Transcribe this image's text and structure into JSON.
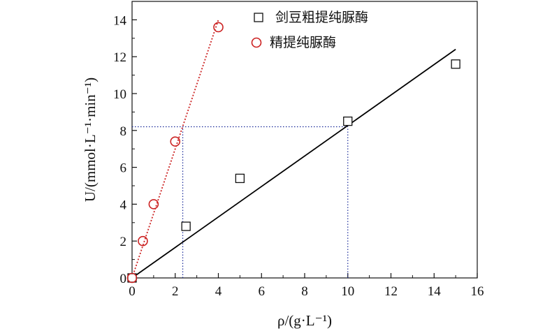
{
  "chart_data": {
    "type": "scatter",
    "xlabel": "ρ/(g·L⁻¹)",
    "ylabel": "U/(mmol·L⁻¹·min⁻¹)",
    "xlim": [
      0,
      16
    ],
    "ylim": [
      0,
      15
    ],
    "xticks": [
      0,
      2,
      4,
      6,
      8,
      10,
      12,
      14,
      16
    ],
    "yticks": [
      0,
      2,
      4,
      6,
      8,
      10,
      12,
      14
    ],
    "grid": false,
    "legend_position": "top-right",
    "series": [
      {
        "name": "剑豆粗提纯脲酶",
        "marker": "square",
        "color": "#111111",
        "x": [
          0,
          2.5,
          5,
          10,
          15
        ],
        "y": [
          0,
          2.8,
          5.4,
          8.5,
          11.6
        ],
        "fit_line": {
          "x": [
            0,
            15
          ],
          "y": [
            0,
            12.4
          ],
          "color": "#000000",
          "style": "solid"
        }
      },
      {
        "name": "精提纯脲酶",
        "marker": "circle",
        "color": "#cc2222",
        "x": [
          0,
          0.5,
          1,
          2,
          4
        ],
        "y": [
          0,
          2.0,
          4.0,
          7.4,
          13.6
        ],
        "fit_line": {
          "x": [
            0,
            4
          ],
          "y": [
            0,
            14.0
          ],
          "color": "#cc2222",
          "style": "dotted"
        }
      }
    ],
    "reference_lines": [
      {
        "orientation": "horizontal",
        "y": 8.2,
        "x_range": [
          0,
          10
        ],
        "color": "#1a2a9a",
        "style": "dotted"
      },
      {
        "orientation": "vertical",
        "x": 2.35,
        "y_range": [
          0,
          8.2
        ],
        "color": "#1a2a9a",
        "style": "dotted"
      },
      {
        "orientation": "vertical",
        "x": 10,
        "y_range": [
          0,
          8.2
        ],
        "color": "#1a2a9a",
        "style": "dotted"
      }
    ]
  }
}
